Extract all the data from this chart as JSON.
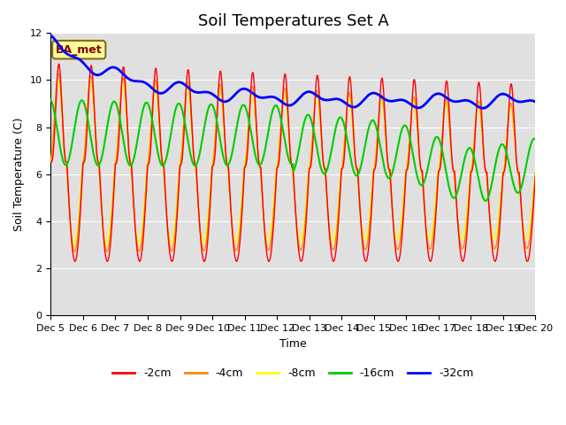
{
  "title": "Soil Temperatures Set A",
  "xlabel": "Time",
  "ylabel": "Soil Temperature (C)",
  "ylim": [
    0,
    12
  ],
  "x_tick_labels": [
    "Dec 5",
    "Dec 6",
    "Dec 7",
    "Dec 8",
    "Dec 9",
    "Dec 10",
    "Dec 11",
    "Dec 12",
    "Dec 13",
    "Dec 14",
    "Dec 15",
    "Dec 16",
    "Dec 17",
    "Dec 18",
    "Dec 19",
    "Dec 20"
  ],
  "colors": {
    "-2cm": "#ff0000",
    "-4cm": "#ff8800",
    "-8cm": "#ffff00",
    "-16cm": "#00cc00",
    "-32cm": "#0000ff"
  },
  "legend_labels": [
    "-2cm",
    "-4cm",
    "-8cm",
    "-16cm",
    "-32cm"
  ],
  "annotation_text": "BA_met",
  "annotation_facecolor": "#ffff99",
  "annotation_edgecolor": "#8b6914",
  "background_color": "#e0e0e0",
  "title_fontsize": 13,
  "axis_label_fontsize": 9,
  "tick_fontsize": 8
}
